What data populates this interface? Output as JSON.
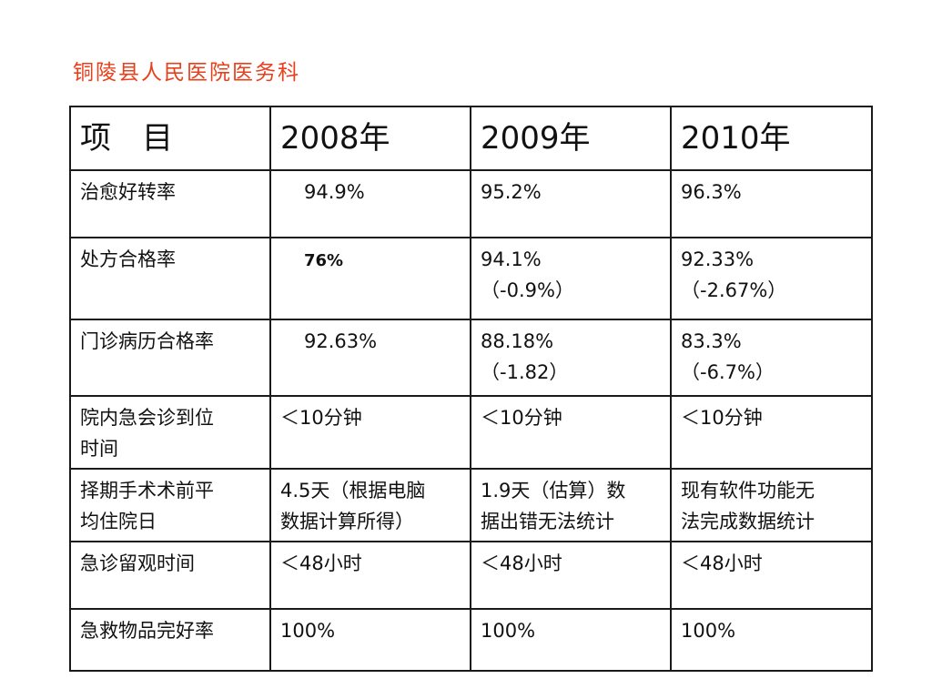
{
  "title": "铜陵县人民医院医务科",
  "table": {
    "header": [
      "项　目",
      "2008年",
      "2009年",
      "2010年"
    ],
    "rows": [
      {
        "item": "治愈好转率",
        "y2008": "94.9%",
        "y2009": "95.2%",
        "y2010": "96.3%"
      },
      {
        "item": "处方合格率",
        "y2008": "76%",
        "y2009": [
          "94.1%",
          "（-0.9%）"
        ],
        "y2010": [
          "92.33%",
          "（-2.67%）"
        ]
      },
      {
        "item": "门诊病历合格率",
        "y2008": "92.63%",
        "y2009": [
          "88.18%",
          "（-1.82）"
        ],
        "y2010": [
          "83.3%",
          "（-6.7%）"
        ]
      },
      {
        "item": [
          "院内急会诊到位",
          "时间"
        ],
        "y2008": "＜10分钟",
        "y2009": "＜10分钟",
        "y2010": "＜10分钟"
      },
      {
        "item": [
          "择期手术术前平",
          "均住院日"
        ],
        "y2008": [
          "4.5天（根据电脑",
          "数据计算所得）"
        ],
        "y2009": [
          "1.9天（估算）数",
          "据出错无法统计"
        ],
        "y2010": [
          "现有软件功能无",
          "法完成数据统计"
        ]
      },
      {
        "item": "急诊留观时间",
        "y2008": "＜48小时",
        "y2009": "＜48小时",
        "y2010": "＜48小时"
      },
      {
        "item": "急救物品完好率",
        "y2008": "100%",
        "y2009": "100%",
        "y2010": "100%"
      }
    ]
  },
  "colors": {
    "accent_red": "#e8401c",
    "text": "#111111",
    "border": "#1a1a1a"
  }
}
